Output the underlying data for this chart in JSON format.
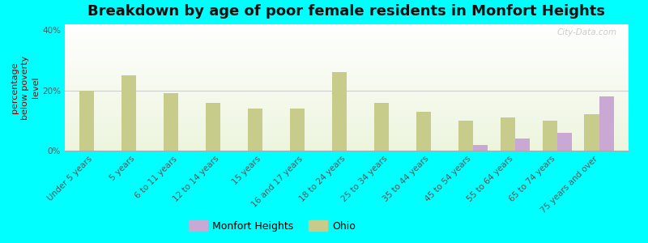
{
  "title": "Breakdown by age of poor female residents in Monfort Heights",
  "ylabel": "percentage\nbelow poverty\nlevel",
  "categories": [
    "Under 5 years",
    "5 years",
    "6 to 11 years",
    "12 to 14 years",
    "15 years",
    "16 and 17 years",
    "18 to 24 years",
    "25 to 34 years",
    "35 to 44 years",
    "45 to 54 years",
    "55 to 64 years",
    "65 to 74 years",
    "75 years and over"
  ],
  "monfort_heights": [
    0,
    0,
    0,
    0,
    0,
    0,
    0,
    0,
    0,
    2,
    4,
    6,
    18
  ],
  "ohio": [
    20,
    25,
    19,
    16,
    14,
    14,
    26,
    16,
    13,
    10,
    11,
    10,
    12
  ],
  "bar_color_mh": "#c9a8d4",
  "bar_color_ohio": "#c8cc8a",
  "background_color": "#00ffff",
  "plot_bg_top": "#eef2e0",
  "plot_bg_bottom": "#fafafa",
  "ylim": [
    0,
    42
  ],
  "yticks": [
    0,
    20,
    40
  ],
  "ytick_labels": [
    "0%",
    "20%",
    "40%"
  ],
  "watermark": "City-Data.com",
  "title_fontsize": 13,
  "axis_label_fontsize": 8,
  "tick_fontsize": 7.5,
  "legend_fontsize": 9,
  "bar_width": 0.35
}
